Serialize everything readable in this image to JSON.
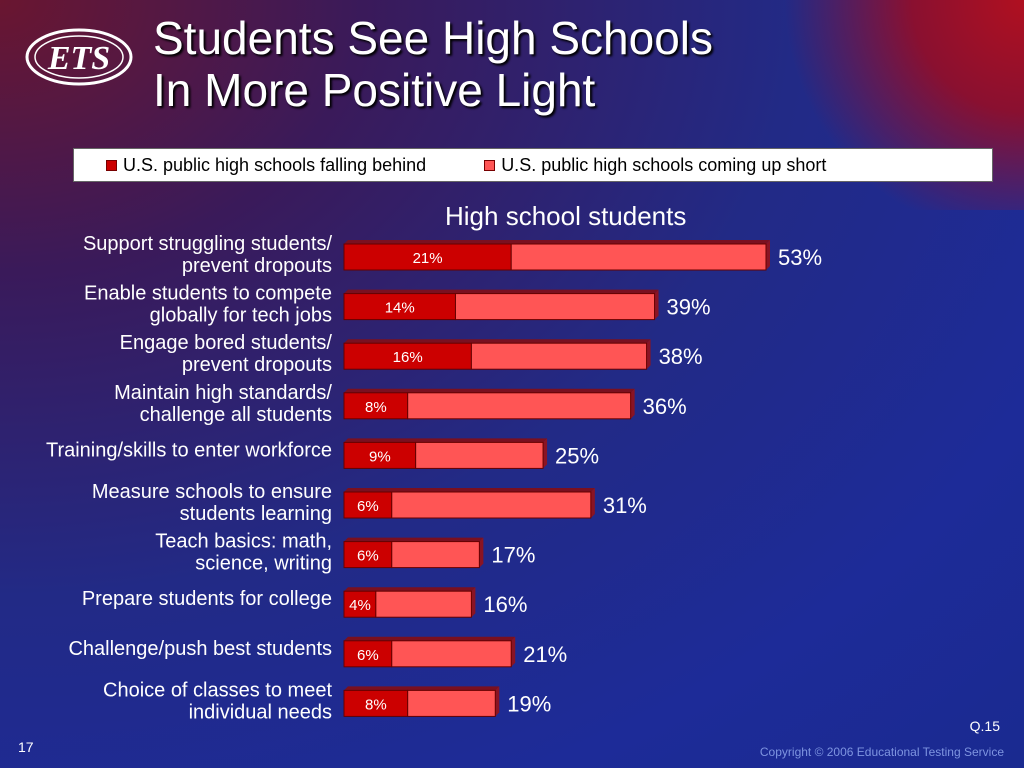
{
  "slide": {
    "title_line1": "Students See High Schools",
    "title_line2": "In More Positive Light",
    "logo_text": "ETS",
    "page_number": "17",
    "question_ref": "Q.15",
    "copyright": "Copyright © 2006 Educational Testing Service"
  },
  "chart_data": {
    "type": "bar",
    "orientation": "horizontal",
    "stacked": true,
    "title": "High school students",
    "legend_position": "top",
    "categories": [
      [
        "Support struggling students/",
        "prevent dropouts"
      ],
      [
        "Enable students to compete",
        "globally for tech jobs"
      ],
      [
        "Engage bored students/",
        "prevent dropouts"
      ],
      [
        "Maintain high standards/",
        "challenge all students"
      ],
      [
        "Training/skills to enter workforce"
      ],
      [
        "Measure schools to ensure",
        "students learning"
      ],
      [
        "Teach basics: math,",
        "science, writing"
      ],
      [
        "Prepare students for college"
      ],
      [
        "Challenge/push best students"
      ],
      [
        "Choice of classes to meet",
        "individual needs"
      ]
    ],
    "series": [
      {
        "name": "U.S. public high schools falling behind",
        "color": "#cc0000",
        "values": [
          21,
          14,
          16,
          8,
          9,
          6,
          6,
          4,
          6,
          8
        ]
      },
      {
        "name": "U.S. public high schools coming up short",
        "color": "#ff5555",
        "values": [
          32,
          25,
          22,
          28,
          16,
          25,
          11,
          12,
          15,
          11
        ]
      }
    ],
    "total_labels": [
      "53%",
      "39%",
      "38%",
      "36%",
      "25%",
      "31%",
      "17%",
      "16%",
      "21%",
      "19%"
    ],
    "inner_labels": [
      "21%",
      "14%",
      "16%",
      "8%",
      "9%",
      "6%",
      "6%",
      "4%",
      "6%",
      "8%"
    ],
    "xlim": [
      0,
      53
    ],
    "grid": false
  }
}
